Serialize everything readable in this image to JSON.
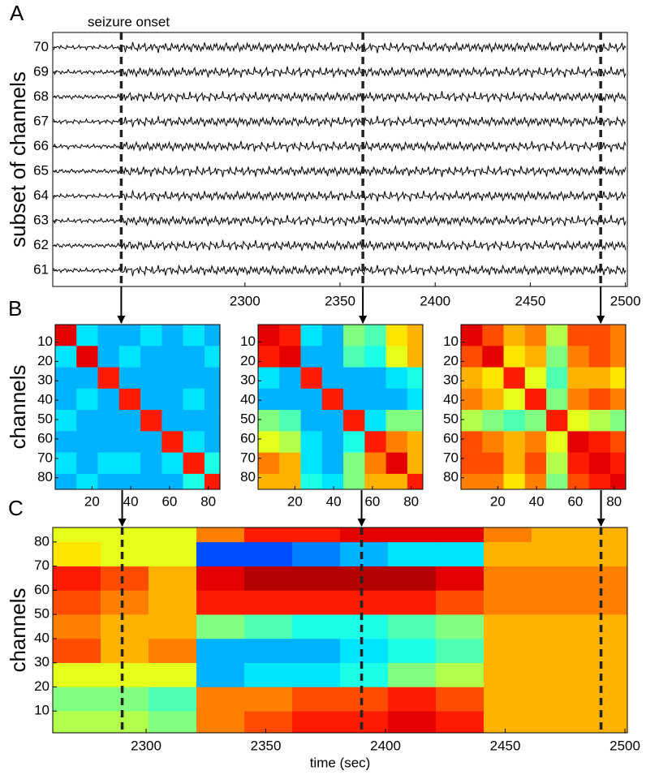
{
  "chart_data": [
    {
      "type": "traces",
      "panel_label": "A",
      "annotation": "seizure onset",
      "ylabel": "subset of channels",
      "xlim": [
        2199,
        2501
      ],
      "xticks": [
        2300,
        2350,
        2400,
        2450,
        2500
      ],
      "ylim": [
        60.35,
        70.6
      ],
      "yticks": [
        61,
        62,
        63,
        64,
        65,
        66,
        67,
        68,
        69,
        70
      ],
      "onset_lines": [
        2235,
        2362,
        2487
      ]
    },
    {
      "type": "matrix",
      "panel_label": "B",
      "ylabel": "channels",
      "colormap": "jet",
      "xlim": [
        1,
        86
      ],
      "ylim": [
        1,
        86
      ],
      "xticks": [
        20,
        40,
        60,
        80
      ],
      "yticks": [
        10,
        20,
        30,
        40,
        50,
        60,
        70,
        80
      ],
      "bins": [
        1,
        12,
        23,
        34,
        45,
        56,
        67,
        78,
        86
      ],
      "values": [
        [
          0.9,
          0.35,
          0.3,
          0.3,
          0.35,
          0.3,
          0.35,
          0.3
        ],
        [
          0.35,
          0.9,
          0.3,
          0.35,
          0.3,
          0.3,
          0.3,
          0.35
        ],
        [
          0.3,
          0.3,
          0.85,
          0.3,
          0.3,
          0.3,
          0.3,
          0.3
        ],
        [
          0.3,
          0.35,
          0.3,
          0.85,
          0.3,
          0.3,
          0.35,
          0.3
        ],
        [
          0.35,
          0.3,
          0.3,
          0.3,
          0.85,
          0.3,
          0.3,
          0.3
        ],
        [
          0.3,
          0.3,
          0.3,
          0.3,
          0.3,
          0.85,
          0.35,
          0.3
        ],
        [
          0.35,
          0.3,
          0.35,
          0.35,
          0.3,
          0.35,
          0.85,
          0.4
        ],
        [
          0.3,
          0.35,
          0.3,
          0.3,
          0.3,
          0.3,
          0.4,
          0.85
        ]
      ]
    },
    {
      "type": "matrix",
      "colormap": "jet",
      "xlim": [
        1,
        86
      ],
      "ylim": [
        1,
        86
      ],
      "xticks": [
        20,
        40,
        60,
        80
      ],
      "yticks": [
        10,
        20,
        30,
        40,
        50,
        60,
        70,
        80
      ],
      "bins": [
        1,
        12,
        23,
        34,
        45,
        56,
        67,
        78,
        86
      ],
      "values": [
        [
          0.9,
          0.85,
          0.35,
          0.3,
          0.5,
          0.45,
          0.65,
          0.7
        ],
        [
          0.85,
          0.9,
          0.3,
          0.3,
          0.45,
          0.4,
          0.6,
          0.7
        ],
        [
          0.35,
          0.3,
          0.85,
          0.3,
          0.3,
          0.3,
          0.35,
          0.4
        ],
        [
          0.3,
          0.3,
          0.3,
          0.85,
          0.3,
          0.3,
          0.3,
          0.35
        ],
        [
          0.5,
          0.45,
          0.3,
          0.3,
          0.85,
          0.35,
          0.5,
          0.5
        ],
        [
          0.6,
          0.55,
          0.35,
          0.3,
          0.4,
          0.85,
          0.75,
          0.7
        ],
        [
          0.75,
          0.7,
          0.35,
          0.3,
          0.5,
          0.75,
          0.9,
          0.7
        ],
        [
          0.7,
          0.7,
          0.4,
          0.35,
          0.5,
          0.7,
          0.7,
          0.85
        ]
      ]
    },
    {
      "type": "matrix",
      "colormap": "jet",
      "xlim": [
        1,
        86
      ],
      "ylim": [
        1,
        86
      ],
      "xticks": [
        20,
        40,
        60,
        80
      ],
      "yticks": [
        10,
        20,
        30,
        40,
        50,
        60,
        70,
        80
      ],
      "bins": [
        1,
        12,
        23,
        34,
        45,
        56,
        67,
        78,
        86
      ],
      "values": [
        [
          0.9,
          0.8,
          0.7,
          0.75,
          0.55,
          0.8,
          0.8,
          0.75
        ],
        [
          0.8,
          0.9,
          0.65,
          0.7,
          0.5,
          0.75,
          0.8,
          0.75
        ],
        [
          0.7,
          0.65,
          0.85,
          0.6,
          0.45,
          0.7,
          0.7,
          0.65
        ],
        [
          0.75,
          0.7,
          0.6,
          0.85,
          0.5,
          0.75,
          0.8,
          0.75
        ],
        [
          0.55,
          0.5,
          0.45,
          0.5,
          0.85,
          0.6,
          0.55,
          0.5
        ],
        [
          0.8,
          0.75,
          0.7,
          0.75,
          0.6,
          0.9,
          0.85,
          0.8
        ],
        [
          0.8,
          0.8,
          0.7,
          0.8,
          0.55,
          0.85,
          0.9,
          0.85
        ],
        [
          0.75,
          0.75,
          0.65,
          0.75,
          0.5,
          0.8,
          0.85,
          0.9
        ]
      ]
    },
    {
      "type": "heatmap",
      "panel_label": "C",
      "ylabel": "channels",
      "xlabel": "time (sec)",
      "colormap": "jet",
      "xlim": [
        2261,
        2501
      ],
      "ylim": [
        1,
        86
      ],
      "xticks": [
        2300,
        2350,
        2400,
        2450,
        2500
      ],
      "yticks": [
        10,
        20,
        30,
        40,
        50,
        60,
        70,
        80
      ],
      "onset_lines": [
        2290,
        2390,
        2490
      ],
      "time_bins": [
        2261,
        2281,
        2301,
        2321,
        2341,
        2361,
        2381,
        2401,
        2421,
        2441,
        2461,
        2481,
        2501
      ],
      "channel_bins": [
        1,
        10,
        20,
        30,
        40,
        50,
        60,
        70,
        80,
        86
      ],
      "values": [
        [
          0.55,
          0.55,
          0.5,
          0.75,
          0.8,
          0.85,
          0.85,
          0.9,
          0.85,
          0.7,
          0.7,
          0.7
        ],
        [
          0.5,
          0.5,
          0.45,
          0.75,
          0.75,
          0.8,
          0.8,
          0.85,
          0.8,
          0.7,
          0.7,
          0.7
        ],
        [
          0.6,
          0.6,
          0.6,
          0.3,
          0.35,
          0.35,
          0.4,
          0.5,
          0.55,
          0.7,
          0.7,
          0.7
        ],
        [
          0.8,
          0.7,
          0.75,
          0.3,
          0.3,
          0.3,
          0.35,
          0.4,
          0.45,
          0.7,
          0.7,
          0.7
        ],
        [
          0.75,
          0.7,
          0.7,
          0.5,
          0.45,
          0.4,
          0.4,
          0.45,
          0.5,
          0.7,
          0.7,
          0.7
        ],
        [
          0.8,
          0.75,
          0.7,
          0.85,
          0.85,
          0.85,
          0.85,
          0.85,
          0.8,
          0.75,
          0.75,
          0.75
        ],
        [
          0.85,
          0.8,
          0.7,
          0.9,
          0.95,
          0.95,
          0.95,
          0.95,
          0.9,
          0.75,
          0.75,
          0.75
        ],
        [
          0.65,
          0.6,
          0.6,
          0.2,
          0.2,
          0.25,
          0.3,
          0.35,
          0.35,
          0.7,
          0.7,
          0.7
        ],
        [
          0.6,
          0.6,
          0.6,
          0.75,
          0.85,
          0.85,
          0.9,
          0.9,
          0.9,
          0.75,
          0.7,
          0.7
        ]
      ]
    }
  ]
}
